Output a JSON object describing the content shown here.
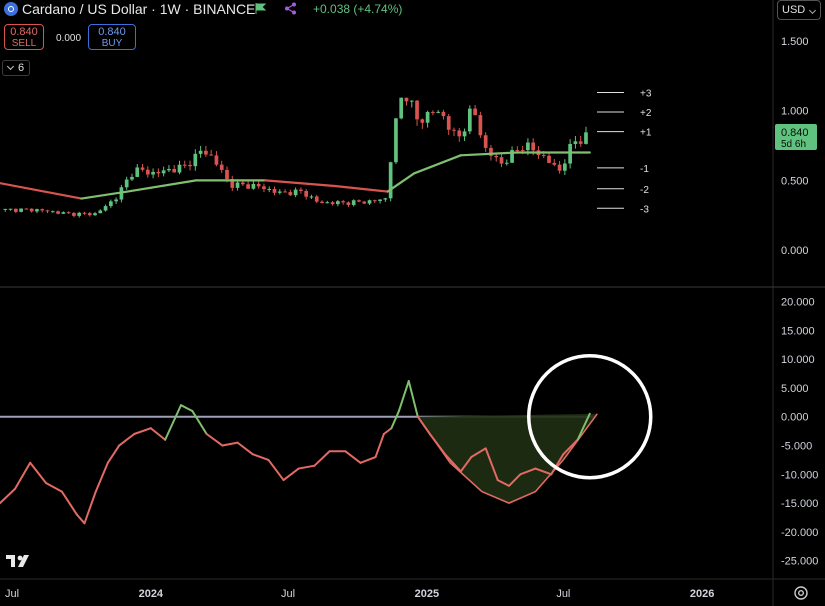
{
  "header": {
    "title": "Cardano / US Dollar · 1W · BINANCE",
    "change": "+0.038 (+4.74%)",
    "sell_price": "0.840",
    "sell_label": "SELL",
    "spread": "0.000",
    "buy_price": "0.840",
    "buy_label": "BUY",
    "indicator_count": "6",
    "currency": "USD"
  },
  "colors": {
    "up": "#5fc27e",
    "down": "#d9544f",
    "ma_up": "#7fbf6f",
    "ma_down": "#d9544f",
    "oscillator": "#e36a64",
    "oscillator_up": "#7fbf6f",
    "zero_line": "#a0a0b8",
    "fill": "#1e2f12",
    "circle": "#ffffff"
  },
  "icons": [
    "cardano-logo-icon",
    "flag-icon",
    "share-icon",
    "chevron-down-icon",
    "tradingview-logo-icon",
    "settings-icon"
  ],
  "chart_data": [
    {
      "type": "candlestick",
      "title": "Cardano / US Dollar · 1W · BINANCE",
      "ylim": [
        -0.25,
        1.65
      ],
      "yticks": [
        0,
        0.5,
        1,
        1.5
      ],
      "ytick_labels": [
        "0.000",
        "0.500",
        "1.000",
        "1.500"
      ],
      "last_price": "0.840",
      "countdown": "5d 6h",
      "x_range": [
        "2023-06-15",
        "2026-04-05"
      ],
      "xtick_dates": [
        "2023-07-01",
        "2024-01-01",
        "2024-07-01",
        "2025-01-01",
        "2025-07-01",
        "2026-01-01"
      ],
      "xtick_labels": [
        "Jul",
        "2024",
        "Jul",
        "2025",
        "Jul",
        "2026"
      ],
      "price_path": [
        [
          "2023-06-15",
          0.29
        ],
        [
          "2023-08-01",
          0.29
        ],
        [
          "2023-09-15",
          0.26
        ],
        [
          "2023-10-20",
          0.26
        ],
        [
          "2023-11-15",
          0.37
        ],
        [
          "2023-12-10",
          0.58
        ],
        [
          "2024-01-05",
          0.55
        ],
        [
          "2024-02-15",
          0.6
        ],
        [
          "2024-03-10",
          0.72
        ],
        [
          "2024-03-25",
          0.65
        ],
        [
          "2024-04-15",
          0.47
        ],
        [
          "2024-05-20",
          0.46
        ],
        [
          "2024-06-20",
          0.41
        ],
        [
          "2024-07-20",
          0.42
        ],
        [
          "2024-08-10",
          0.34
        ],
        [
          "2024-09-15",
          0.34
        ],
        [
          "2024-10-20",
          0.35
        ],
        [
          "2024-11-08",
          0.37
        ],
        [
          "2024-11-15",
          0.7
        ],
        [
          "2024-11-25",
          1.05
        ],
        [
          "2024-12-03",
          1.15
        ],
        [
          "2024-12-20",
          0.92
        ],
        [
          "2025-01-10",
          1.0
        ],
        [
          "2025-01-25",
          0.95
        ],
        [
          "2025-02-10",
          0.78
        ],
        [
          "2025-03-03",
          1.02
        ],
        [
          "2025-03-20",
          0.72
        ],
        [
          "2025-04-10",
          0.62
        ],
        [
          "2025-05-10",
          0.76
        ],
        [
          "2025-06-10",
          0.65
        ],
        [
          "2025-06-25",
          0.56
        ],
        [
          "2025-07-15",
          0.78
        ],
        [
          "2025-07-28",
          0.8
        ],
        [
          "2025-08-05",
          0.84
        ]
      ],
      "moving_average": [
        [
          "2023-06-15",
          0.48
        ],
        [
          "2023-10-01",
          0.37
        ],
        [
          "2023-12-01",
          0.42
        ],
        [
          "2024-03-01",
          0.5
        ],
        [
          "2024-06-01",
          0.5
        ],
        [
          "2024-09-01",
          0.46
        ],
        [
          "2024-11-10",
          0.42
        ],
        [
          "2024-12-15",
          0.55
        ],
        [
          "2025-02-15",
          0.68
        ],
        [
          "2025-05-01",
          0.7
        ],
        [
          "2025-08-05",
          0.7
        ]
      ],
      "level_labels": [
        "+3",
        "+2",
        "+1",
        "-1",
        "-2",
        "-3"
      ],
      "level_values": [
        1.13,
        0.99,
        0.85,
        0.59,
        0.44,
        0.3
      ]
    },
    {
      "type": "line",
      "ylim": [
        -28,
        22
      ],
      "yticks": [
        20,
        15,
        10,
        5,
        0,
        -5,
        -10,
        -15,
        -20,
        -25
      ],
      "ytick_labels": [
        "20.000",
        "15.000",
        "10.000",
        "5.000",
        "0.000",
        "-5.000",
        "-10.000",
        "-15.000",
        "-20.000",
        "-25.000"
      ],
      "zero_line": {
        "from": "2023-06-15",
        "to": "2025-08-10",
        "value": 0
      },
      "oscillator": [
        [
          "2023-06-15",
          -15
        ],
        [
          "2023-07-05",
          -12.5
        ],
        [
          "2023-07-25",
          -8
        ],
        [
          "2023-08-15",
          -11.5
        ],
        [
          "2023-09-05",
          -13
        ],
        [
          "2023-09-25",
          -17
        ],
        [
          "2023-10-05",
          -18.5
        ],
        [
          "2023-10-20",
          -13
        ],
        [
          "2023-11-05",
          -8
        ],
        [
          "2023-11-20",
          -5
        ],
        [
          "2023-12-10",
          -3
        ],
        [
          "2024-01-01",
          -2
        ],
        [
          "2024-01-20",
          -4
        ],
        [
          "2024-02-10",
          2
        ],
        [
          "2024-02-25",
          1
        ],
        [
          "2024-03-15",
          -3
        ],
        [
          "2024-04-05",
          -5
        ],
        [
          "2024-04-25",
          -4.5
        ],
        [
          "2024-05-15",
          -6.5
        ],
        [
          "2024-06-05",
          -7.5
        ],
        [
          "2024-06-25",
          -11
        ],
        [
          "2024-07-15",
          -9
        ],
        [
          "2024-08-05",
          -8.5
        ],
        [
          "2024-08-25",
          -6
        ],
        [
          "2024-09-15",
          -6
        ],
        [
          "2024-10-05",
          -8
        ],
        [
          "2024-10-25",
          -7
        ],
        [
          "2024-11-05",
          -3
        ],
        [
          "2024-11-15",
          -2
        ],
        [
          "2024-11-25",
          1
        ],
        [
          "2024-12-08",
          6.2
        ],
        [
          "2024-12-20",
          0
        ],
        [
          "2025-01-05",
          -3
        ],
        [
          "2025-01-25",
          -6.5
        ],
        [
          "2025-02-15",
          -9.5
        ],
        [
          "2025-03-01",
          -7
        ],
        [
          "2025-03-20",
          -5.5
        ],
        [
          "2025-04-05",
          -11
        ],
        [
          "2025-04-20",
          -12
        ],
        [
          "2025-05-05",
          -10
        ],
        [
          "2025-05-25",
          -9
        ],
        [
          "2025-06-15",
          -10
        ],
        [
          "2025-07-01",
          -6.5
        ],
        [
          "2025-07-20",
          -4
        ],
        [
          "2025-08-05",
          0.5
        ]
      ],
      "cup_curve": [
        [
          "2024-12-20",
          0
        ],
        [
          "2025-02-01",
          -8
        ],
        [
          "2025-03-15",
          -13
        ],
        [
          "2025-04-20",
          -15
        ],
        [
          "2025-05-25",
          -13
        ],
        [
          "2025-07-01",
          -7.5
        ],
        [
          "2025-08-15",
          0.5
        ]
      ],
      "highlight_circle": {
        "date": "2025-08-05",
        "value": 0
      }
    }
  ]
}
